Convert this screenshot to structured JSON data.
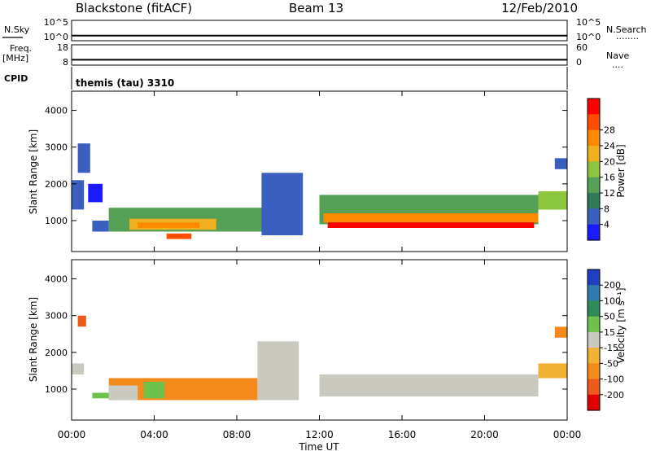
{
  "header": {
    "station": "Blackstone (fitACF)",
    "beam": "Beam 13",
    "date": "12/Feb/2010"
  },
  "side_labels": {
    "nsky": "N.Sky",
    "nsearch": "N.Search",
    "nsearch_dots": "........",
    "freq": "Freq.",
    "freq_unit": "[MHz]",
    "nave": "Nave",
    "nave_dots": "....",
    "cpid": "CPID",
    "cpid_value": "themis (tau) 3310"
  },
  "chart_data": [
    {
      "type": "line",
      "name": "noise-panel",
      "left_ticks": [
        "10^5",
        "10^0"
      ],
      "right_ticks": [
        "10^5",
        "10^0"
      ],
      "x": [
        0,
        0.3,
        0.6,
        1,
        1.5,
        2,
        3,
        4,
        5,
        6,
        7,
        8,
        9,
        10,
        11,
        12,
        13,
        14,
        15,
        16,
        17,
        18,
        19,
        20,
        21,
        22,
        23,
        24
      ],
      "series": [
        {
          "values": [
            10,
            10,
            10,
            10,
            10,
            10,
            10,
            10,
            10,
            10,
            10,
            10,
            10,
            10,
            10,
            10,
            10,
            10,
            10,
            10,
            10,
            10,
            10,
            10,
            10,
            10,
            10,
            10
          ]
        }
      ]
    },
    {
      "type": "line",
      "name": "freq-nave-panel",
      "left_ticks": [
        "18",
        "8"
      ],
      "right_ticks": [
        "60",
        "0"
      ],
      "x": [
        0,
        24
      ],
      "series": [
        {
          "values": [
            10.2,
            10.2
          ]
        }
      ]
    },
    {
      "type": "heatmap",
      "name": "power-panel",
      "ylabel": "Slant Range [km]",
      "xlim": [
        0,
        24
      ],
      "ylim": [
        180,
        4500
      ],
      "yticks": [
        1000,
        2000,
        3000,
        4000
      ],
      "colorbar": {
        "label": "Power [dB]",
        "ticks": [
          4,
          8,
          12,
          16,
          20,
          24,
          28
        ],
        "colors": [
          "#1a1aff",
          "#3a5fc0",
          "#2e7d58",
          "#55a055",
          "#8cc63f",
          "#f0b020",
          "#ff8a00",
          "#ff4d00",
          "#ff0000"
        ]
      },
      "regions": [
        {
          "x0": 0.0,
          "x1": 0.6,
          "y0": 1300,
          "y1": 2100,
          "level": 1
        },
        {
          "x0": 0.3,
          "x1": 0.9,
          "y0": 2300,
          "y1": 3100,
          "level": 1
        },
        {
          "x0": 0.8,
          "x1": 1.5,
          "y0": 1500,
          "y1": 2000,
          "level": 0
        },
        {
          "x0": 1.0,
          "x1": 1.8,
          "y0": 700,
          "y1": 1000,
          "level": 1
        },
        {
          "x0": 1.8,
          "x1": 9.2,
          "y0": 700,
          "y1": 1350,
          "level": 3
        },
        {
          "x0": 2.8,
          "x1": 7.0,
          "y0": 750,
          "y1": 1050,
          "level": 5
        },
        {
          "x0": 3.2,
          "x1": 6.2,
          "y0": 800,
          "y1": 950,
          "level": 6
        },
        {
          "x0": 4.6,
          "x1": 5.8,
          "y0": 500,
          "y1": 650,
          "level": 7
        },
        {
          "x0": 9.2,
          "x1": 11.2,
          "y0": 600,
          "y1": 2300,
          "level": 1
        },
        {
          "x0": 12.0,
          "x1": 22.6,
          "y0": 900,
          "y1": 1700,
          "level": 3
        },
        {
          "x0": 12.2,
          "x1": 22.6,
          "y0": 950,
          "y1": 1200,
          "level": 6
        },
        {
          "x0": 12.4,
          "x1": 22.4,
          "y0": 800,
          "y1": 950,
          "level": 8
        },
        {
          "x0": 22.6,
          "x1": 24.0,
          "y0": 1300,
          "y1": 1800,
          "level": 4
        },
        {
          "x0": 23.4,
          "x1": 24.0,
          "y0": 2400,
          "y1": 2700,
          "level": 1
        }
      ]
    },
    {
      "type": "heatmap",
      "name": "velocity-panel",
      "ylabel": "Slant Range [km]",
      "xlabel": "Time UT",
      "xlim": [
        0,
        24
      ],
      "ylim": [
        180,
        4500
      ],
      "xticks": [
        "00:00",
        "04:00",
        "08:00",
        "12:00",
        "16:00",
        "20:00",
        "00:00"
      ],
      "yticks": [
        1000,
        2000,
        3000,
        4000
      ],
      "colorbar": {
        "label": "Velocity [m s⁻¹]",
        "ticks": [
          "200",
          "100",
          "50",
          "15",
          "-15",
          "-50",
          "-100",
          "-200"
        ],
        "colors": [
          "#1e3fbf",
          "#2f7ab0",
          "#2e8b57",
          "#6cc24a",
          "#c9c9c0",
          "#f2b233",
          "#f48a1c",
          "#ef5a1a",
          "#e00000"
        ]
      },
      "regions": [
        {
          "x0": 0.0,
          "x1": 0.6,
          "y0": 1400,
          "y1": 1700,
          "level": 4
        },
        {
          "x0": 0.3,
          "x1": 0.7,
          "y0": 2700,
          "y1": 3000,
          "level": 7
        },
        {
          "x0": 1.0,
          "x1": 1.8,
          "y0": 750,
          "y1": 900,
          "level": 3
        },
        {
          "x0": 1.8,
          "x1": 9.0,
          "y0": 700,
          "y1": 1300,
          "level": 6
        },
        {
          "x0": 1.8,
          "x1": 3.2,
          "y0": 700,
          "y1": 1100,
          "level": 4
        },
        {
          "x0": 3.5,
          "x1": 4.5,
          "y0": 750,
          "y1": 1200,
          "level": 3
        },
        {
          "x0": 9.0,
          "x1": 11.0,
          "y0": 700,
          "y1": 2300,
          "level": 4
        },
        {
          "x0": 12.0,
          "x1": 22.6,
          "y0": 800,
          "y1": 1400,
          "level": 4
        },
        {
          "x0": 22.6,
          "x1": 24.0,
          "y0": 1300,
          "y1": 1700,
          "level": 5
        },
        {
          "x0": 23.4,
          "x1": 24.0,
          "y0": 2400,
          "y1": 2700,
          "level": 6
        }
      ]
    }
  ]
}
